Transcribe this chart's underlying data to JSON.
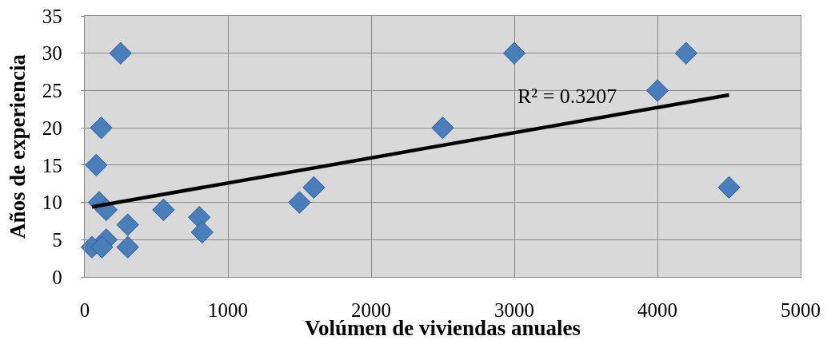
{
  "chart_data": {
    "type": "scatter",
    "xlabel": "Volúmen de viviendas anuales",
    "ylabel": "Años de experiencia",
    "xlim": [
      0,
      5000
    ],
    "xticks": [
      0,
      1000,
      2000,
      3000,
      4000,
      5000
    ],
    "ylim": [
      0,
      35
    ],
    "yticks": [
      0,
      5,
      10,
      15,
      20,
      25,
      30,
      35
    ],
    "grid": true,
    "marker": "diamond",
    "series": [
      {
        "color": "#4a7ebb",
        "x": [
          250,
          115,
          80,
          100,
          150,
          550,
          800,
          820,
          300,
          150,
          50,
          120,
          300,
          1500,
          1600,
          2500,
          3000,
          4000,
          4200,
          4500
        ],
        "values": [
          30,
          20,
          15,
          10,
          9,
          9,
          8,
          6,
          7,
          5,
          4,
          4,
          4,
          10,
          12,
          20,
          30,
          25,
          30,
          12
        ]
      },
      {
        "type": "line",
        "color": "#000000",
        "marker": "none",
        "x": [
          50,
          4500
        ],
        "values": [
          9.4,
          24.4
        ]
      }
    ],
    "annotations": [
      "R² = 0.3207"
    ]
  }
}
